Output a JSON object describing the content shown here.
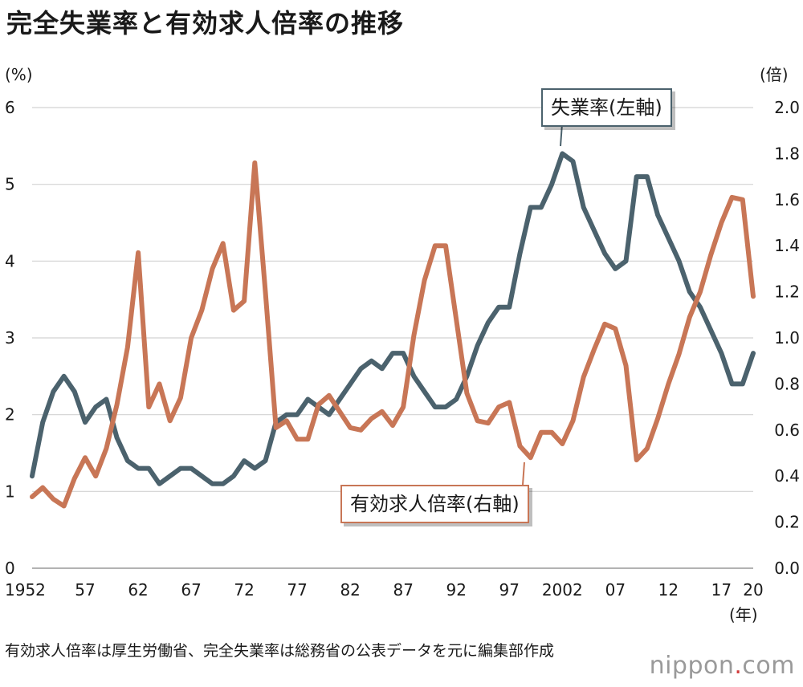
{
  "title": "完全失業率と有効求人倍率の推移",
  "left_unit": "(%)",
  "right_unit": "(倍)",
  "year_unit": "(年)",
  "source": "有効求人倍率は厚生労働省、完全失業率は総務省の公表データを元に編集部作成",
  "brand": {
    "name": "nippon",
    "dot": ".",
    "tld": "com"
  },
  "chart_data": {
    "type": "line",
    "title": "完全失業率と有効求人倍率の推移",
    "x": [
      1952,
      1953,
      1954,
      1955,
      1956,
      1957,
      1958,
      1959,
      1960,
      1961,
      1962,
      1963,
      1964,
      1965,
      1966,
      1967,
      1968,
      1969,
      1970,
      1971,
      1972,
      1973,
      1974,
      1975,
      1976,
      1977,
      1978,
      1979,
      1980,
      1981,
      1982,
      1983,
      1984,
      1985,
      1986,
      1987,
      1988,
      1989,
      1990,
      1991,
      1992,
      1993,
      1994,
      1995,
      1996,
      1997,
      1998,
      1999,
      2000,
      2001,
      2002,
      2003,
      2004,
      2005,
      2006,
      2007,
      2008,
      2009,
      2010,
      2011,
      2012,
      2013,
      2014,
      2015,
      2016,
      2017,
      2018,
      2019,
      2020
    ],
    "x_tick_values": [
      1952,
      1957,
      1962,
      1967,
      1972,
      1977,
      1982,
      1987,
      1992,
      1997,
      2002,
      2007,
      2012,
      2017,
      2020
    ],
    "x_tick_labels": [
      "1952",
      "57",
      "62",
      "67",
      "72",
      "77",
      "82",
      "87",
      "92",
      "97",
      "2002",
      "07",
      "12",
      "17",
      "20"
    ],
    "xlim": [
      1952,
      2020
    ],
    "y_left": {
      "label": "(%)",
      "ylim": [
        0,
        6
      ],
      "ticks": [
        "0",
        "1",
        "2",
        "3",
        "4",
        "5",
        "6"
      ]
    },
    "y_right": {
      "label": "(倍)",
      "ylim": [
        0,
        2.0
      ],
      "ticks": [
        "0.0",
        "0.2",
        "0.4",
        "0.6",
        "0.8",
        "1.0",
        "1.2",
        "1.4",
        "1.6",
        "1.8",
        "2.0"
      ]
    },
    "grid": true,
    "series": [
      {
        "name": "失業率(左軸)",
        "axis": "left",
        "color": "#4b626d",
        "values": [
          1.2,
          1.9,
          2.3,
          2.5,
          2.3,
          1.9,
          2.1,
          2.2,
          1.7,
          1.4,
          1.3,
          1.3,
          1.1,
          1.2,
          1.3,
          1.3,
          1.2,
          1.1,
          1.1,
          1.2,
          1.4,
          1.3,
          1.4,
          1.9,
          2.0,
          2.0,
          2.2,
          2.1,
          2.0,
          2.2,
          2.4,
          2.6,
          2.7,
          2.6,
          2.8,
          2.8,
          2.5,
          2.3,
          2.1,
          2.1,
          2.2,
          2.5,
          2.9,
          3.2,
          3.4,
          3.4,
          4.1,
          4.7,
          4.7,
          5.0,
          5.4,
          5.3,
          4.7,
          4.4,
          4.1,
          3.9,
          4.0,
          5.1,
          5.1,
          4.6,
          4.3,
          4.0,
          3.6,
          3.4,
          3.1,
          2.8,
          2.4,
          2.4,
          2.8
        ]
      },
      {
        "name": "有効求人倍率(右軸)",
        "axis": "right",
        "color": "#c87656",
        "values": [
          0.31,
          0.35,
          0.3,
          0.27,
          0.39,
          0.48,
          0.4,
          0.52,
          0.71,
          0.96,
          1.37,
          0.7,
          0.8,
          0.64,
          0.74,
          1.0,
          1.12,
          1.3,
          1.41,
          1.12,
          1.16,
          1.76,
          1.2,
          0.61,
          0.64,
          0.56,
          0.56,
          0.71,
          0.75,
          0.68,
          0.61,
          0.6,
          0.65,
          0.68,
          0.62,
          0.7,
          1.01,
          1.25,
          1.4,
          1.4,
          1.08,
          0.76,
          0.64,
          0.63,
          0.7,
          0.72,
          0.53,
          0.48,
          0.59,
          0.59,
          0.54,
          0.64,
          0.83,
          0.95,
          1.06,
          1.04,
          0.88,
          0.47,
          0.52,
          0.65,
          0.8,
          0.93,
          1.09,
          1.2,
          1.36,
          1.5,
          1.61,
          1.6,
          1.18
        ]
      }
    ],
    "annotations": [
      "失業率(左軸)",
      "有効求人倍率(右軸)"
    ]
  }
}
